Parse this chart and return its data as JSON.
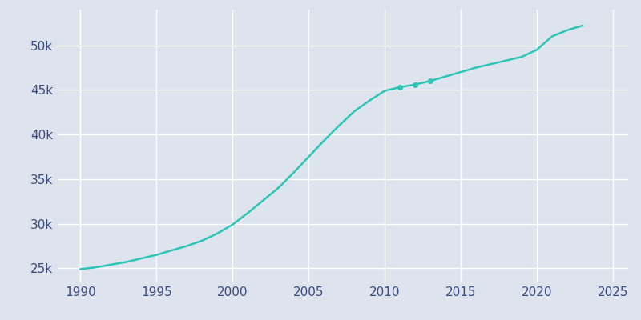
{
  "years": [
    1990,
    1991,
    1992,
    1993,
    1994,
    1995,
    1996,
    1997,
    1998,
    1999,
    2000,
    2001,
    2002,
    2003,
    2004,
    2005,
    2006,
    2007,
    2008,
    2009,
    2010,
    2011,
    2012,
    2013,
    2014,
    2015,
    2016,
    2017,
    2018,
    2019,
    2020,
    2021,
    2022,
    2023
  ],
  "population": [
    24900,
    25100,
    25400,
    25700,
    26100,
    26500,
    27000,
    27500,
    28100,
    28900,
    29900,
    31200,
    32600,
    34000,
    35700,
    37500,
    39300,
    41000,
    42600,
    43800,
    44900,
    45300,
    45600,
    46000,
    46500,
    47000,
    47500,
    47900,
    48300,
    48700,
    49500,
    51000,
    51700,
    52200
  ],
  "line_color": "#2dc5b6",
  "marker_style": "o",
  "marker_size": 4,
  "marker_indices": [
    21,
    22,
    23
  ],
  "background_color": "#dde4ed",
  "plot_bg_color": "#dde4ed",
  "grid_color": "#ffffff",
  "xlim": [
    1988.5,
    2026
  ],
  "ylim": [
    23500,
    54000
  ],
  "xticks": [
    1990,
    1995,
    2000,
    2005,
    2010,
    2015,
    2020,
    2025
  ],
  "yticks": [
    25000,
    30000,
    35000,
    40000,
    45000,
    50000
  ],
  "ytick_labels": [
    "25k",
    "30k",
    "35k",
    "40k",
    "45k",
    "50k"
  ],
  "tick_label_color": "#3b4a80",
  "linewidth": 1.8,
  "tick_fontsize": 11
}
